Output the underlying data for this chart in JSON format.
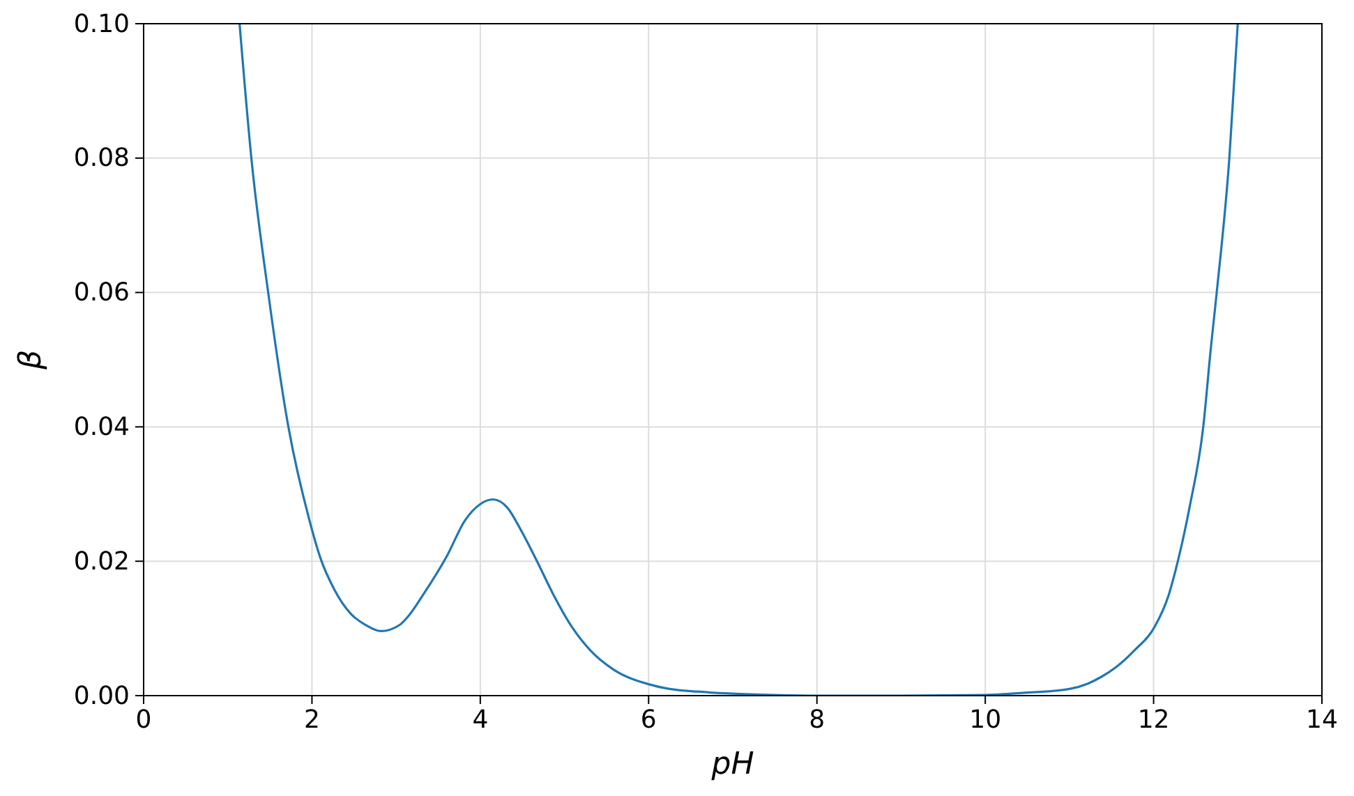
{
  "chart_data": {
    "type": "line",
    "xlabel": "pH",
    "ylabel": "β",
    "x": [
      1.14,
      1.28,
      1.48,
      1.72,
      1.97,
      2.1,
      2.27,
      2.46,
      2.64,
      2.82,
      3.04,
      3.15,
      3.32,
      3.6,
      3.82,
      4.0,
      4.15,
      4.32,
      4.48,
      4.67,
      4.87,
      5.09,
      5.31,
      5.58,
      6.0,
      6.25,
      6.58,
      7.0,
      7.5,
      8.0,
      9.0,
      10.0,
      10.44,
      11.0,
      11.22,
      11.38,
      11.55,
      11.77,
      12.01,
      12.18,
      12.29,
      12.43,
      12.59,
      12.68,
      12.75,
      12.9,
      13.0
    ],
    "values": [
      0.1,
      0.08,
      0.06,
      0.04,
      0.0261,
      0.0205,
      0.0157,
      0.0122,
      0.0105,
      0.0096,
      0.0105,
      0.0119,
      0.015,
      0.0207,
      0.0261,
      0.0285,
      0.0292,
      0.028,
      0.0247,
      0.0201,
      0.015,
      0.0102,
      0.0067,
      0.0039,
      0.0017,
      0.001,
      0.0006,
      0.0003,
      0.0001,
      0.0,
      0.0,
      0.0001,
      0.0004,
      0.001,
      0.0018,
      0.0028,
      0.0042,
      0.0067,
      0.0102,
      0.015,
      0.0201,
      0.0282,
      0.04,
      0.0517,
      0.06,
      0.08,
      0.1
    ],
    "color": "#1f77b4",
    "xlim": [
      0,
      14
    ],
    "xticks": [
      0,
      2,
      4,
      6,
      8,
      10,
      12,
      14
    ],
    "ylim": [
      0,
      0.1
    ],
    "yticks": [
      {
        "value": 0,
        "label": "0.00"
      },
      {
        "value": 0.02,
        "label": "0.02"
      },
      {
        "value": 0.04,
        "label": "0.04"
      },
      {
        "value": 0.06,
        "label": "0.06"
      },
      {
        "value": 0.08,
        "label": "0.08"
      },
      {
        "value": 0.1,
        "label": "0.10"
      }
    ],
    "grid": true
  }
}
